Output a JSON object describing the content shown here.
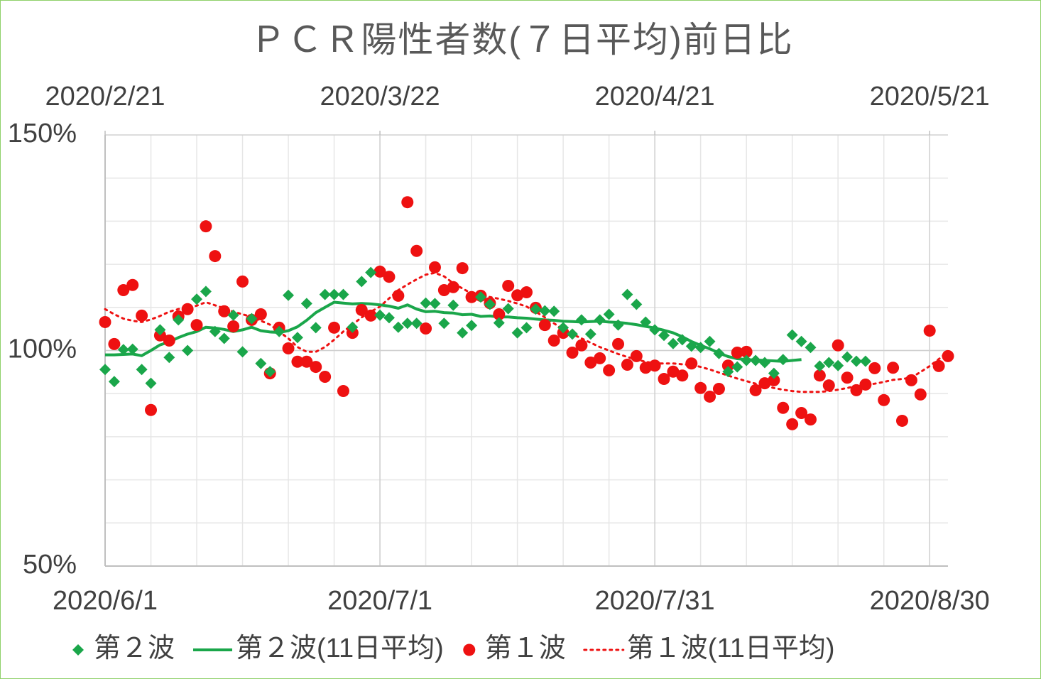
{
  "chart_data": {
    "type": "scatter-line",
    "title": "ＰＣＲ陽性者数(７日平均)前日比",
    "x": [
      "2020/6/1",
      "2020/6/2",
      "2020/6/3",
      "2020/6/4",
      "2020/6/5",
      "2020/6/6",
      "2020/6/7",
      "2020/6/8",
      "2020/6/9",
      "2020/6/10",
      "2020/6/11",
      "2020/6/12",
      "2020/6/13",
      "2020/6/14",
      "2020/6/15",
      "2020/6/16",
      "2020/6/17",
      "2020/6/18",
      "2020/6/19",
      "2020/6/20",
      "2020/6/21",
      "2020/6/22",
      "2020/6/23",
      "2020/6/24",
      "2020/6/25",
      "2020/6/26",
      "2020/6/27",
      "2020/6/28",
      "2020/6/29",
      "2020/6/30",
      "2020/7/1",
      "2020/7/2",
      "2020/7/3",
      "2020/7/4",
      "2020/7/5",
      "2020/7/6",
      "2020/7/7",
      "2020/7/8",
      "2020/7/9",
      "2020/7/10",
      "2020/7/11",
      "2020/7/12",
      "2020/7/13",
      "2020/7/14",
      "2020/7/15",
      "2020/7/16",
      "2020/7/17",
      "2020/7/18",
      "2020/7/19",
      "2020/7/20",
      "2020/7/21",
      "2020/7/22",
      "2020/7/23",
      "2020/7/24",
      "2020/7/25",
      "2020/7/26",
      "2020/7/27",
      "2020/7/28",
      "2020/7/29",
      "2020/7/30",
      "2020/7/31",
      "2020/8/1",
      "2020/8/2",
      "2020/8/3",
      "2020/8/4",
      "2020/8/5",
      "2020/8/6",
      "2020/8/7",
      "2020/8/8",
      "2020/8/9",
      "2020/8/10",
      "2020/8/11",
      "2020/8/12",
      "2020/8/13",
      "2020/8/14",
      "2020/8/15",
      "2020/8/16",
      "2020/8/17",
      "2020/8/18",
      "2020/8/19",
      "2020/8/20",
      "2020/8/21",
      "2020/8/22",
      "2020/8/23",
      "2020/8/24",
      "2020/8/25",
      "2020/8/26",
      "2020/8/27",
      "2020/8/28",
      "2020/8/29",
      "2020/8/30",
      "2020/8/31",
      "2020/9/1"
    ],
    "x2": [
      "2020/2/21",
      "2020/2/22",
      "2020/2/23",
      "2020/2/24",
      "2020/2/25",
      "2020/2/26",
      "2020/2/27",
      "2020/2/28",
      "2020/2/29",
      "2020/3/1",
      "2020/3/2",
      "2020/3/3",
      "2020/3/4",
      "2020/3/5",
      "2020/3/6",
      "2020/3/7",
      "2020/3/8",
      "2020/3/9",
      "2020/3/10",
      "2020/3/11",
      "2020/3/12",
      "2020/3/13",
      "2020/3/14",
      "2020/3/15",
      "2020/3/16",
      "2020/3/17",
      "2020/3/18",
      "2020/3/19",
      "2020/3/20",
      "2020/3/21",
      "2020/3/22",
      "2020/3/23",
      "2020/3/24",
      "2020/3/25",
      "2020/3/26",
      "2020/3/27",
      "2020/3/28",
      "2020/3/29",
      "2020/3/30",
      "2020/3/31",
      "2020/4/1",
      "2020/4/2",
      "2020/4/3",
      "2020/4/4",
      "2020/4/5",
      "2020/4/6",
      "2020/4/7",
      "2020/4/8",
      "2020/4/9",
      "2020/4/10",
      "2020/4/11",
      "2020/4/12",
      "2020/4/13",
      "2020/4/14",
      "2020/4/15",
      "2020/4/16",
      "2020/4/17",
      "2020/4/18",
      "2020/4/19",
      "2020/4/20",
      "2020/4/21",
      "2020/4/22",
      "2020/4/23",
      "2020/4/24",
      "2020/4/25",
      "2020/4/26",
      "2020/4/27",
      "2020/4/28",
      "2020/4/29",
      "2020/4/30",
      "2020/5/1",
      "2020/5/2",
      "2020/5/3",
      "2020/5/4",
      "2020/5/5",
      "2020/5/6",
      "2020/5/7",
      "2020/5/8",
      "2020/5/9",
      "2020/5/10",
      "2020/5/11",
      "2020/5/12",
      "2020/5/13",
      "2020/5/14",
      "2020/5/15",
      "2020/5/16",
      "2020/5/17",
      "2020/5/18",
      "2020/5/19",
      "2020/5/20",
      "2020/5/21",
      "2020/5/22",
      "2020/5/23"
    ],
    "xlim": [
      "2020/6/1",
      "2020/9/1"
    ],
    "xticks": [
      "2020/6/1",
      "2020/7/1",
      "2020/7/31",
      "2020/8/30"
    ],
    "x2lim": [
      "2020/2/21",
      "2020/5/23"
    ],
    "x2ticks": [
      "2020/2/21",
      "2020/3/22",
      "2020/4/21",
      "2020/5/21"
    ],
    "ylim": [
      50,
      150
    ],
    "yticks": [
      {
        "value": 50,
        "label": "50%"
      },
      {
        "value": 100,
        "label": "100%"
      },
      {
        "value": 150,
        "label": "150%"
      }
    ],
    "grid": true,
    "legend": "bottom",
    "series": [
      {
        "name": "第２波",
        "style": "diamond",
        "xaxis": "x",
        "color": "#1aa64a",
        "values": [
          95.6,
          92.8,
          100.2,
          100.3,
          95.6,
          92.4,
          104.8,
          98.4,
          107.1,
          100,
          111.9,
          113.7,
          104.4,
          102.8,
          108.2,
          99.7,
          107.4,
          97.0,
          95.1,
          104.4,
          112.8,
          103.0,
          110.9,
          105.3,
          113.0,
          113.0,
          113.0,
          105.4,
          116.0,
          118.1,
          108.2,
          107.6,
          105.4,
          106.3,
          106.3,
          111.0,
          110.9,
          106.3,
          110.5,
          104.1,
          105.8,
          112.4,
          110.7,
          106.4,
          109.7,
          104.1,
          105.3,
          109.6,
          109.2,
          109.1,
          105.3,
          103.8,
          107.1,
          103.8,
          107.1,
          108.4,
          105.9,
          113.0,
          110.7,
          106.6,
          104.8,
          103.5,
          101.6,
          102.5,
          101.0,
          100.7,
          102.1,
          99.3,
          95.1,
          96.2,
          97.7,
          97.7,
          97.2,
          94.7,
          97.9,
          103.6,
          102.1,
          100.7,
          96.4,
          97.2,
          96.5,
          98.5,
          97.5,
          97.5,
          null,
          null,
          null,
          null,
          null,
          null,
          null,
          null,
          null
        ]
      },
      {
        "name": "第２波(11日平均)",
        "style": "line",
        "xaxis": "x",
        "color": "#1aa64a",
        "values": [
          99,
          99,
          99.1,
          99.2,
          98.8,
          100,
          101.3,
          102,
          103,
          103.8,
          104.4,
          105.4,
          105.2,
          104.9,
          104.4,
          104.8,
          105.4,
          104.6,
          104.3,
          104.2,
          104.6,
          105.5,
          107,
          108.8,
          110,
          111.2,
          111,
          110.8,
          110.9,
          110.8,
          110.6,
          110.3,
          109.8,
          110.6,
          109.6,
          109,
          109.1,
          108.8,
          108.7,
          108.3,
          108.4,
          107.9,
          108,
          107.8,
          107.8,
          107.6,
          107.5,
          107.3,
          107.1,
          107,
          106.8,
          106.7,
          106.6,
          106.7,
          106.8,
          106.6,
          106.5,
          106.3,
          106.0,
          105.6,
          105.2,
          104.7,
          104.1,
          103.2,
          102.1,
          101.2,
          100.4,
          99.4,
          98.6,
          98.1,
          97.9,
          97.8,
          97.7,
          97.6,
          97.5,
          97.7,
          97.9,
          null,
          null,
          null,
          null,
          null,
          null,
          null,
          null,
          null,
          null,
          null,
          null,
          null,
          null,
          null,
          null
        ]
      },
      {
        "name": "第１波",
        "style": "dot",
        "xaxis": "x2",
        "color": "#ee1111",
        "values": [
          106.6,
          101.5,
          114.0,
          115.2,
          108.1,
          86.2,
          103.5,
          102.3,
          107.9,
          109.6,
          105.9,
          128.8,
          121.9,
          109.1,
          105.6,
          116.0,
          107.1,
          108.4,
          94.7,
          105.3,
          100.5,
          97.4,
          97.4,
          96.2,
          93.9,
          105.3,
          90.6,
          104.1,
          109.4,
          108.1,
          118.3,
          117.1,
          112.7,
          134.4,
          123.1,
          105.1,
          119.3,
          114.0,
          114.7,
          119.1,
          112.4,
          112.7,
          111.0,
          108.4,
          115.0,
          112.8,
          113.5,
          109.9,
          105.9,
          102.3,
          104.1,
          99.5,
          101.2,
          97.2,
          98.2,
          95.4,
          101.5,
          96.7,
          98.7,
          96.0,
          96.5,
          93.4,
          95.1,
          94.2,
          97.0,
          91.3,
          89.3,
          91.1,
          96.5,
          99.5,
          99.7,
          90.8,
          92.4,
          93.1,
          86.7,
          82.9,
          85.5,
          84.0,
          94.2,
          91.9,
          101.2,
          93.7,
          90.8,
          92.1,
          95.9,
          88.5,
          96.0,
          83.7,
          93.1,
          89.8,
          104.6,
          96.4,
          98.7
        ]
      },
      {
        "name": "第１波(11日平均)",
        "style": "dotted",
        "xaxis": "x2",
        "color": "#ee1111",
        "values": [
          109.6,
          108.4,
          107.4,
          106.9,
          106.6,
          107.2,
          108.0,
          109.0,
          109.6,
          110.0,
          110.4,
          111.2,
          110.5,
          109.8,
          109.0,
          108.4,
          107.8,
          106.9,
          106.0,
          104.4,
          102.8,
          100.8,
          99.7,
          99.7,
          100.8,
          102.5,
          104.4,
          106.0,
          107.7,
          109.0,
          110.2,
          112.1,
          114.0,
          115.3,
          116.5,
          117.6,
          118.0,
          117.2,
          115.6,
          114.4,
          113.2,
          112.8,
          112.4,
          112.0,
          111.5,
          110.9,
          110.2,
          109.0,
          107.7,
          106.3,
          104.9,
          103.8,
          102.8,
          101.8,
          100.8,
          100.0,
          99.2,
          98.5,
          97.9,
          97.4,
          97.0,
          97.0,
          97.0,
          96.8,
          96.7,
          96.2,
          95.6,
          94.9,
          94.2,
          93.5,
          92.9,
          92.3,
          91.8,
          91.3,
          90.9,
          90.6,
          90.4,
          90.4,
          90.4,
          90.6,
          90.9,
          91.3,
          91.8,
          92.0,
          92.3,
          92.7,
          93.2,
          93.4,
          93.7,
          95.0,
          96.4,
          98.0,
          99.7
        ]
      }
    ]
  }
}
